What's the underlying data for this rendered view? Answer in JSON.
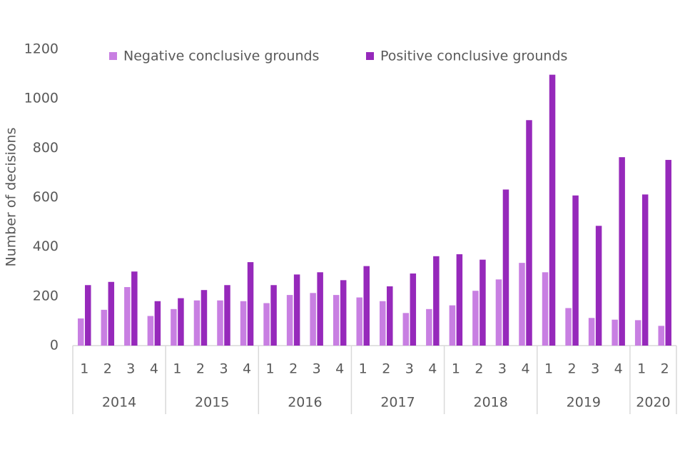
{
  "chart_data": {
    "type": "bar",
    "y_label": "Number of decisions",
    "category_groups": [
      {
        "label": "2014",
        "categories": [
          "1",
          "2",
          "3",
          "4"
        ]
      },
      {
        "label": "2015",
        "categories": [
          "1",
          "2",
          "3",
          "4"
        ]
      },
      {
        "label": "2016",
        "categories": [
          "1",
          "2",
          "3",
          "4"
        ]
      },
      {
        "label": "2017",
        "categories": [
          "1",
          "2",
          "3",
          "4"
        ]
      },
      {
        "label": "2018",
        "categories": [
          "1",
          "2",
          "3",
          "4"
        ]
      },
      {
        "label": "2019",
        "categories": [
          "1",
          "2",
          "3",
          "4"
        ]
      },
      {
        "label": "2020",
        "categories": [
          "1",
          "2"
        ]
      }
    ],
    "series": [
      {
        "name": "Negative conclusive grounds",
        "color": "#c87fe2",
        "values": [
          110,
          145,
          237,
          120,
          148,
          183,
          183,
          180,
          172,
          205,
          213,
          205,
          195,
          180,
          132,
          148,
          163,
          222,
          268,
          335,
          297,
          152,
          112,
          105,
          103,
          80
        ]
      },
      {
        "name": "Positive conclusive grounds",
        "color": "#9629bb",
        "values": [
          245,
          258,
          300,
          180,
          192,
          225,
          245,
          338,
          245,
          288,
          297,
          265,
          322,
          240,
          292,
          362,
          370,
          348,
          632,
          913,
          1097,
          608,
          485,
          763,
          612,
          752
        ]
      }
    ],
    "ylim": [
      0,
      1200
    ],
    "yticks": [
      0,
      200,
      400,
      600,
      800,
      1000,
      1200
    ],
    "grid": false
  }
}
